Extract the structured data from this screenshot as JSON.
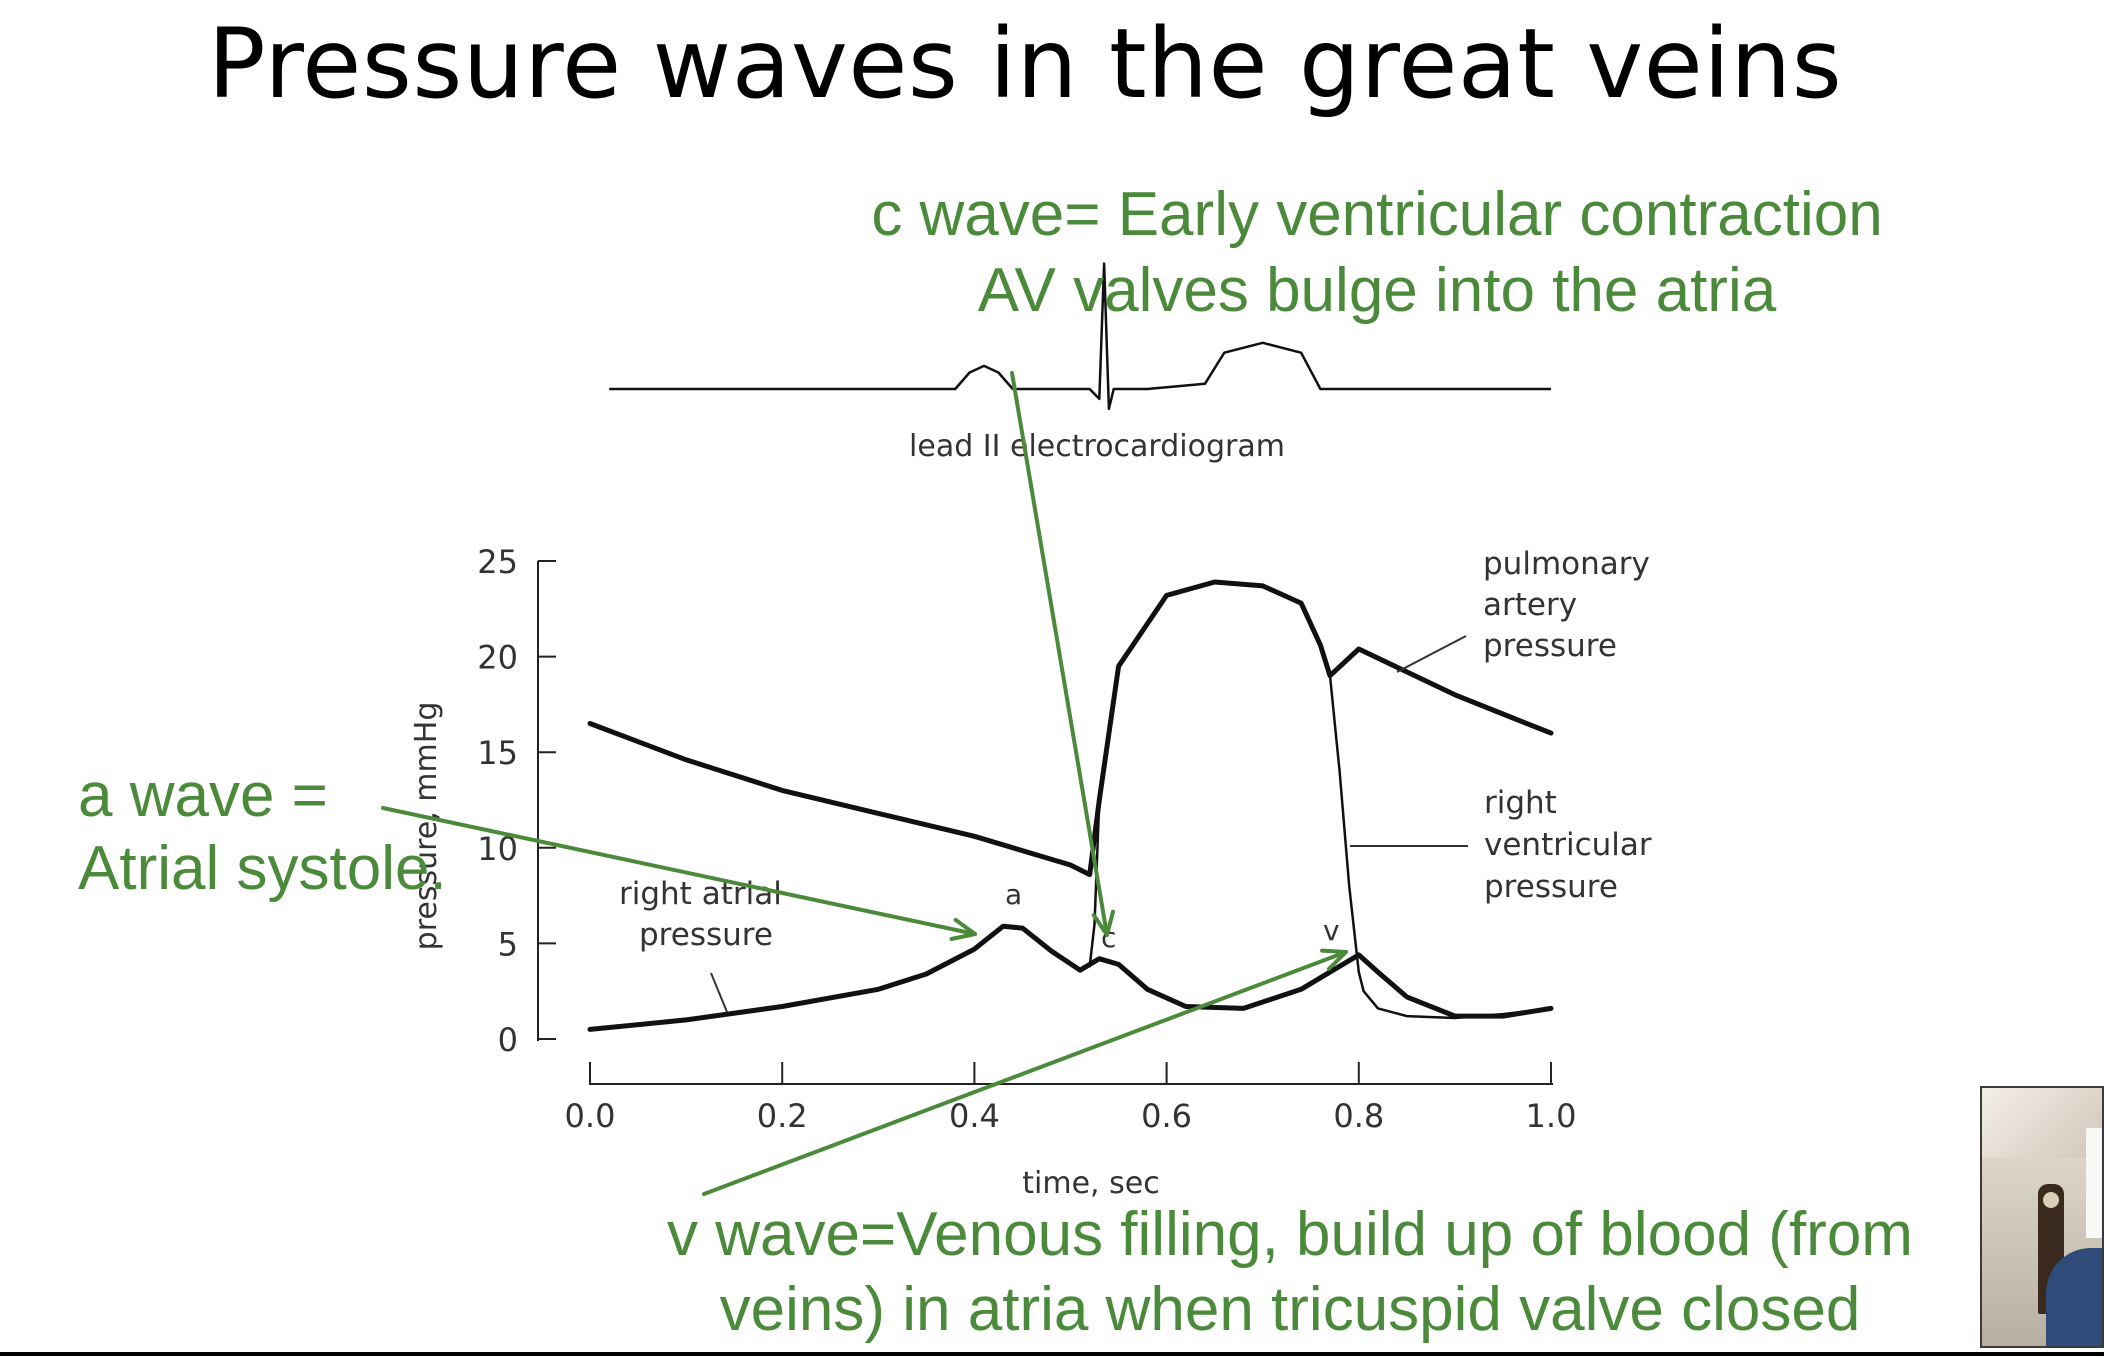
{
  "slide": {
    "title": "Pressure waves in the great veins"
  },
  "annotations": {
    "c_wave_line1": "c wave= Early ventricular contraction",
    "c_wave_line2": "AV valves bulge into the atria",
    "a_wave_line1": "a wave =",
    "a_wave_line2": "Atrial systole.",
    "v_wave_line1": "v wave=Venous filling, build up of blood (from",
    "v_wave_line2": "veins) in atria when tricuspid valve closed"
  },
  "colors": {
    "annotation": "#4b8a3a",
    "curve": "#111111",
    "axis": "#222222"
  },
  "chart_data": {
    "type": "line",
    "xlabel": "time, sec",
    "ylabel": "pressure, mmHg",
    "xlim": [
      0.0,
      1.0
    ],
    "ylim": [
      0,
      25
    ],
    "xticks": [
      "0.0",
      "0.2",
      "0.4",
      "0.6",
      "0.8",
      "1.0"
    ],
    "yticks": [
      "0",
      "5",
      "10",
      "15",
      "20",
      "25"
    ],
    "ecg_label": "lead II electrocardiogram",
    "curve_labels": {
      "pa1": "pulmonary",
      "pa2": "artery",
      "pa3": "pressure",
      "rv1": "right",
      "rv2": "ventricular",
      "rv3": "pressure",
      "ra1": "right atrial",
      "ra2": "pressure"
    },
    "wave_letters": {
      "a": "a",
      "c": "c",
      "v": "v"
    },
    "series": [
      {
        "name": "pulmonary artery pressure",
        "x": [
          0.0,
          0.1,
          0.2,
          0.3,
          0.4,
          0.5,
          0.52,
          0.53,
          0.55,
          0.6,
          0.65,
          0.7,
          0.74,
          0.76,
          0.77,
          0.8,
          0.85,
          0.9,
          0.95,
          1.0
        ],
        "y": [
          16.5,
          14.6,
          13.0,
          11.8,
          10.6,
          9.1,
          8.6,
          12.5,
          19.5,
          23.2,
          23.9,
          23.7,
          22.8,
          20.6,
          19.0,
          20.4,
          19.2,
          18.0,
          17.0,
          16.0
        ]
      },
      {
        "name": "right ventricular pressure",
        "x": [
          0.52,
          0.525,
          0.53,
          0.55,
          0.6,
          0.65,
          0.7,
          0.74,
          0.76,
          0.77,
          0.78,
          0.79,
          0.8,
          0.805,
          0.82,
          0.85,
          0.9,
          0.95,
          1.0
        ],
        "y": [
          3.8,
          6.0,
          12.5,
          19.5,
          23.2,
          23.9,
          23.7,
          22.8,
          20.6,
          19.0,
          14.0,
          8.0,
          3.5,
          2.5,
          1.6,
          1.2,
          1.1,
          1.3,
          1.6
        ]
      },
      {
        "name": "right atrial pressure",
        "x": [
          0.0,
          0.1,
          0.2,
          0.3,
          0.35,
          0.4,
          0.43,
          0.45,
          0.48,
          0.51,
          0.53,
          0.55,
          0.58,
          0.62,
          0.68,
          0.74,
          0.78,
          0.8,
          0.82,
          0.85,
          0.9,
          0.95,
          1.0
        ],
        "y": [
          0.5,
          1.0,
          1.7,
          2.6,
          3.4,
          4.7,
          5.9,
          5.8,
          4.6,
          3.6,
          4.2,
          3.9,
          2.6,
          1.7,
          1.6,
          2.6,
          3.8,
          4.4,
          3.5,
          2.2,
          1.2,
          1.2,
          1.6
        ]
      }
    ],
    "ecg": {
      "x": [
        0.02,
        0.38,
        0.395,
        0.41,
        0.425,
        0.44,
        0.52,
        0.53,
        0.535,
        0.54,
        0.545,
        0.55,
        0.58,
        0.64,
        0.66,
        0.7,
        0.74,
        0.76,
        1.0
      ],
      "y": [
        0,
        0,
        0.25,
        0.35,
        0.25,
        0,
        0,
        -0.15,
        1.9,
        -0.3,
        0,
        0,
        0,
        0.08,
        0.55,
        0.7,
        0.55,
        0,
        0
      ]
    }
  }
}
